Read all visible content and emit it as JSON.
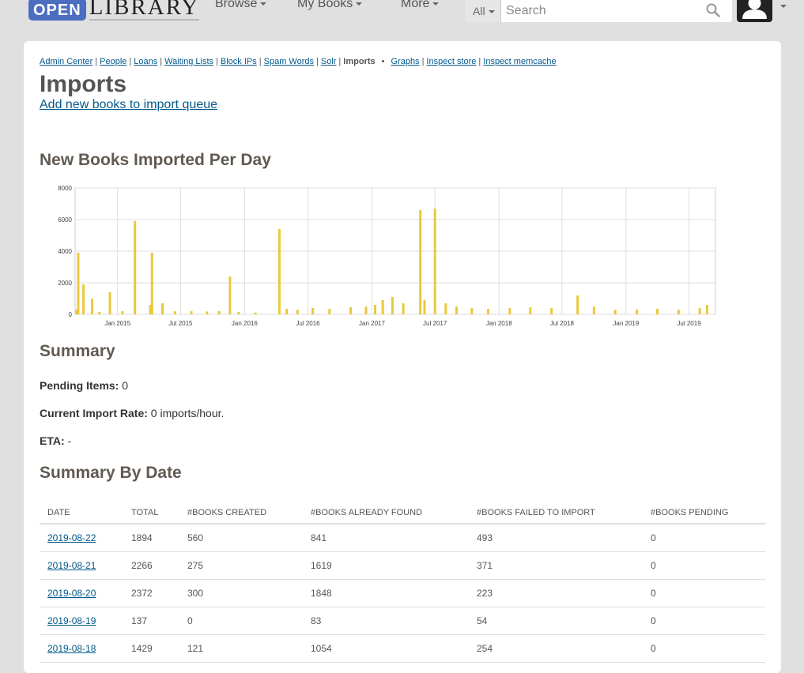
{
  "header": {
    "logo_open": "OPEN",
    "logo_library": "LIBRARY",
    "nav": [
      "Browse",
      "My Books",
      "More"
    ],
    "search_scope": "All",
    "search_placeholder": "Search"
  },
  "admin_nav": {
    "links": [
      "Admin Center",
      "People",
      "Loans",
      "Waiting Lists",
      "Block IPs",
      "Spam Words",
      "Solr"
    ],
    "current": "Imports",
    "links2": [
      "Graphs",
      "Inspect store",
      "Inspect memcache"
    ]
  },
  "page": {
    "title": "Imports",
    "add_link": "Add new books to import queue",
    "chart_heading": "New Books Imported Per Day",
    "summary_heading": "Summary",
    "pending_label": "Pending Items:",
    "pending_value": "0",
    "rate_label": "Current Import Rate:",
    "rate_value": "0 imports/hour.",
    "eta_label": "ETA:",
    "eta_value": "-",
    "by_date_heading": "Summary By Date"
  },
  "chart_data": {
    "type": "bar",
    "title": "",
    "color": "#e8c93c",
    "ylim": [
      0,
      8000
    ],
    "yticks": [
      "8000",
      "6000",
      "4000",
      "2000",
      "0"
    ],
    "xlim": [
      "2014-09-01",
      "2019-09-15"
    ],
    "xticks": [
      "Jan 2015",
      "Jul 2015",
      "Jan 2016",
      "Jul 2016",
      "Jan 2017",
      "Jul 2017",
      "Jan 2018",
      "Jul 2018",
      "Jan 2019",
      "Jul 2019"
    ],
    "xtick_dates": [
      "2015-01-01",
      "2015-07-01",
      "2016-01-01",
      "2016-07-01",
      "2017-01-01",
      "2017-07-01",
      "2018-01-01",
      "2018-07-01",
      "2019-01-01",
      "2019-07-01"
    ],
    "points": [
      [
        "2014-09-05",
        300
      ],
      [
        "2014-09-10",
        3900
      ],
      [
        "2014-09-25",
        1900
      ],
      [
        "2014-10-20",
        1000
      ],
      [
        "2014-11-10",
        150
      ],
      [
        "2014-12-10",
        1400
      ],
      [
        "2015-01-15",
        200
      ],
      [
        "2015-02-20",
        5900
      ],
      [
        "2015-04-05",
        600
      ],
      [
        "2015-04-10",
        3900
      ],
      [
        "2015-05-10",
        700
      ],
      [
        "2015-06-15",
        200
      ],
      [
        "2015-08-01",
        200
      ],
      [
        "2015-09-15",
        180
      ],
      [
        "2015-10-20",
        200
      ],
      [
        "2015-11-20",
        2400
      ],
      [
        "2015-12-15",
        150
      ],
      [
        "2016-02-01",
        120
      ],
      [
        "2016-04-10",
        5400
      ],
      [
        "2016-05-01",
        350
      ],
      [
        "2016-06-01",
        300
      ],
      [
        "2016-07-15",
        400
      ],
      [
        "2016-09-01",
        350
      ],
      [
        "2016-11-01",
        450
      ],
      [
        "2016-12-15",
        500
      ],
      [
        "2017-01-10",
        600
      ],
      [
        "2017-02-01",
        900
      ],
      [
        "2017-03-01",
        1100
      ],
      [
        "2017-04-01",
        700
      ],
      [
        "2017-05-20",
        6600
      ],
      [
        "2017-06-01",
        900
      ],
      [
        "2017-07-01",
        6700
      ],
      [
        "2017-08-01",
        700
      ],
      [
        "2017-09-01",
        500
      ],
      [
        "2017-10-15",
        400
      ],
      [
        "2017-12-01",
        350
      ],
      [
        "2018-02-01",
        400
      ],
      [
        "2018-04-01",
        450
      ],
      [
        "2018-06-01",
        400
      ],
      [
        "2018-08-15",
        1200
      ],
      [
        "2018-10-01",
        500
      ],
      [
        "2018-12-01",
        300
      ],
      [
        "2019-02-01",
        300
      ],
      [
        "2019-04-01",
        350
      ],
      [
        "2019-06-01",
        300
      ],
      [
        "2019-08-01",
        400
      ],
      [
        "2019-08-22",
        600
      ]
    ]
  },
  "summary_table": {
    "columns": [
      "DATE",
      "TOTAL",
      "#BOOKS CREATED",
      "#BOOKS ALREADY FOUND",
      "#BOOKS FAILED TO IMPORT",
      "#BOOKS PENDING"
    ],
    "rows": [
      [
        "2019-08-22",
        "1894",
        "560",
        "841",
        "493",
        "0"
      ],
      [
        "2019-08-21",
        "2266",
        "275",
        "1619",
        "371",
        "0"
      ],
      [
        "2019-08-20",
        "2372",
        "300",
        "1848",
        "223",
        "0"
      ],
      [
        "2019-08-19",
        "137",
        "0",
        "83",
        "54",
        "0"
      ],
      [
        "2019-08-18",
        "1429",
        "121",
        "1054",
        "254",
        "0"
      ]
    ]
  }
}
